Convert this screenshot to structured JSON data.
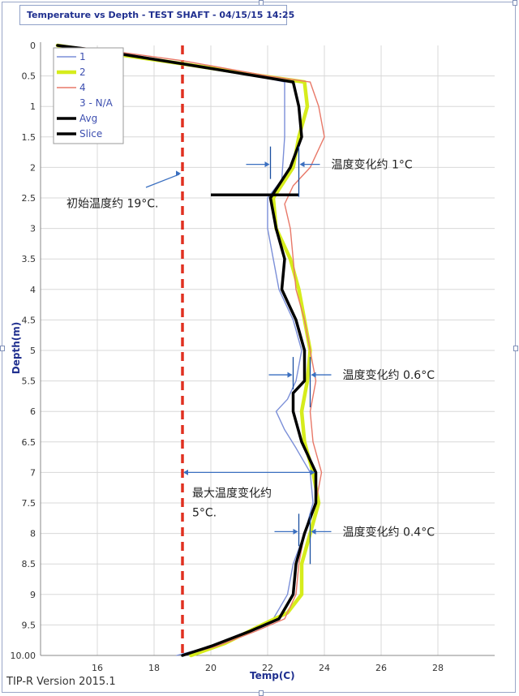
{
  "title": "Temperature vs Depth - TEST SHAFT - 04/15/15 14:25",
  "version": "TIP-R Version 2015.1",
  "chart_data": {
    "type": "line",
    "xlabel": "Temp(C)",
    "ylabel": "Depth(m)",
    "xlim": [
      14,
      30
    ],
    "ylim": [
      0,
      10
    ],
    "y_inverted": true,
    "grid": true,
    "x_ticks": [
      "16",
      "18",
      "20",
      "22",
      "24",
      "26",
      "28"
    ],
    "y_ticks": [
      "0",
      "0.5",
      "1",
      "1.5",
      "2",
      "2.5",
      "3",
      "3.5",
      "4",
      "4.5",
      "5",
      "5.5",
      "6",
      "6.5",
      "7",
      "7.5",
      "8",
      "8.5",
      "9",
      "9.5",
      "10.00"
    ],
    "legend_position": "top-left",
    "series": [
      {
        "name": "1",
        "color": "#7b8fd8",
        "width": 1.4,
        "points": [
          [
            14.6,
            0
          ],
          [
            16.0,
            0.08
          ],
          [
            19.0,
            0.3
          ],
          [
            21.6,
            0.5
          ],
          [
            22.6,
            0.6
          ],
          [
            22.6,
            1.5
          ],
          [
            22.5,
            2.2
          ],
          [
            22.0,
            2.5
          ],
          [
            22.0,
            3.0
          ],
          [
            22.2,
            3.5
          ],
          [
            22.4,
            4.0
          ],
          [
            22.9,
            4.5
          ],
          [
            23.2,
            5.0
          ],
          [
            23.0,
            5.5
          ],
          [
            22.7,
            5.8
          ],
          [
            22.3,
            6.0
          ],
          [
            22.6,
            6.3
          ],
          [
            23.0,
            6.6
          ],
          [
            23.5,
            7.0
          ],
          [
            23.6,
            7.5
          ],
          [
            23.3,
            8.0
          ],
          [
            22.9,
            8.5
          ],
          [
            22.7,
            9.0
          ],
          [
            22.2,
            9.4
          ],
          [
            21.3,
            9.6
          ],
          [
            20.0,
            9.85
          ],
          [
            18.8,
            10.0
          ]
        ]
      },
      {
        "name": "2",
        "color": "#d6ec1c",
        "width": 4.5,
        "points": [
          [
            14.6,
            0
          ],
          [
            16.0,
            0.1
          ],
          [
            19.0,
            0.3
          ],
          [
            21.8,
            0.5
          ],
          [
            23.3,
            0.6
          ],
          [
            23.4,
            1.0
          ],
          [
            23.1,
            1.5
          ],
          [
            22.9,
            2.0
          ],
          [
            22.2,
            2.5
          ],
          [
            22.3,
            3.0
          ],
          [
            22.8,
            3.5
          ],
          [
            23.1,
            4.0
          ],
          [
            23.3,
            4.5
          ],
          [
            23.5,
            5.0
          ],
          [
            23.4,
            5.5
          ],
          [
            23.2,
            6.0
          ],
          [
            23.3,
            6.5
          ],
          [
            23.6,
            7.0
          ],
          [
            23.8,
            7.5
          ],
          [
            23.5,
            8.0
          ],
          [
            23.2,
            8.5
          ],
          [
            23.2,
            9.0
          ],
          [
            22.7,
            9.3
          ],
          [
            21.8,
            9.5
          ],
          [
            20.5,
            9.8
          ],
          [
            19.3,
            10.0
          ]
        ]
      },
      {
        "name": "4",
        "color": "#e87868",
        "width": 1.4,
        "points": [
          [
            14.6,
            0
          ],
          [
            16.0,
            0.06
          ],
          [
            19.0,
            0.25
          ],
          [
            22.0,
            0.5
          ],
          [
            23.5,
            0.6
          ],
          [
            23.8,
            1.0
          ],
          [
            24.0,
            1.5
          ],
          [
            23.5,
            2.0
          ],
          [
            22.9,
            2.3
          ],
          [
            22.6,
            2.6
          ],
          [
            22.8,
            3.0
          ],
          [
            22.9,
            3.5
          ],
          [
            23.0,
            4.0
          ],
          [
            23.3,
            4.5
          ],
          [
            23.5,
            5.0
          ],
          [
            23.7,
            5.5
          ],
          [
            23.5,
            6.0
          ],
          [
            23.6,
            6.5
          ],
          [
            23.9,
            7.0
          ],
          [
            23.7,
            7.5
          ],
          [
            23.3,
            8.0
          ],
          [
            23.1,
            8.5
          ],
          [
            23.0,
            9.0
          ],
          [
            22.6,
            9.4
          ],
          [
            21.6,
            9.6
          ],
          [
            20.2,
            9.85
          ],
          [
            19.0,
            10.0
          ]
        ]
      },
      {
        "name": "Avg",
        "color": "#000000",
        "width": 3.5,
        "points": [
          [
            14.6,
            0
          ],
          [
            16.0,
            0.08
          ],
          [
            19.0,
            0.3
          ],
          [
            21.6,
            0.5
          ],
          [
            22.9,
            0.6
          ],
          [
            23.1,
            1.0
          ],
          [
            23.2,
            1.5
          ],
          [
            22.8,
            2.0
          ],
          [
            22.1,
            2.5
          ],
          [
            22.3,
            3.0
          ],
          [
            22.6,
            3.5
          ],
          [
            22.5,
            4.0
          ],
          [
            23.0,
            4.5
          ],
          [
            23.3,
            5.0
          ],
          [
            23.3,
            5.5
          ],
          [
            22.9,
            5.7
          ],
          [
            22.9,
            6.0
          ],
          [
            23.2,
            6.5
          ],
          [
            23.7,
            7.0
          ],
          [
            23.7,
            7.5
          ],
          [
            23.3,
            8.0
          ],
          [
            23.0,
            8.5
          ],
          [
            22.9,
            9.0
          ],
          [
            22.4,
            9.4
          ],
          [
            21.4,
            9.6
          ],
          [
            20.0,
            9.85
          ],
          [
            19.0,
            10.0
          ]
        ]
      }
    ],
    "legend": [
      {
        "label": "1",
        "color": "#7b8fd8",
        "width": 1.4
      },
      {
        "label": "2",
        "color": "#d6ec1c",
        "width": 4.5
      },
      {
        "label": "4",
        "color": "#e87868",
        "width": 1.4
      },
      {
        "label": "3 - N/A",
        "color": "",
        "width": 0
      },
      {
        "label": "Avg",
        "color": "#000000",
        "width": 3.5
      },
      {
        "label": "Slice",
        "color": "#000000",
        "width": 3.5
      }
    ],
    "initial_temp_line": {
      "x": 19.0,
      "color": "#e03020",
      "label": "初始温度约 19°C."
    },
    "slice": {
      "depth": 2.45,
      "x_from": 20.0,
      "x_to": 23.1
    },
    "annotations": [
      {
        "label": "温度变化约 1°C",
        "depth": 1.95,
        "x_left": 22.1,
        "x_right": 23.1
      },
      {
        "label": "温度变化约 0.6°C",
        "depth": 5.4,
        "x_left": 22.9,
        "x_right": 23.5
      },
      {
        "label": "温度变化约 0.4°C",
        "depth": 7.97,
        "x_left": 23.1,
        "x_right": 23.5
      }
    ],
    "max_change": {
      "label_line1": "最大温度变化约",
      "label_line2": "5°C.",
      "depth": 7.0,
      "x_from": 19.0,
      "x_to": 23.7
    }
  }
}
